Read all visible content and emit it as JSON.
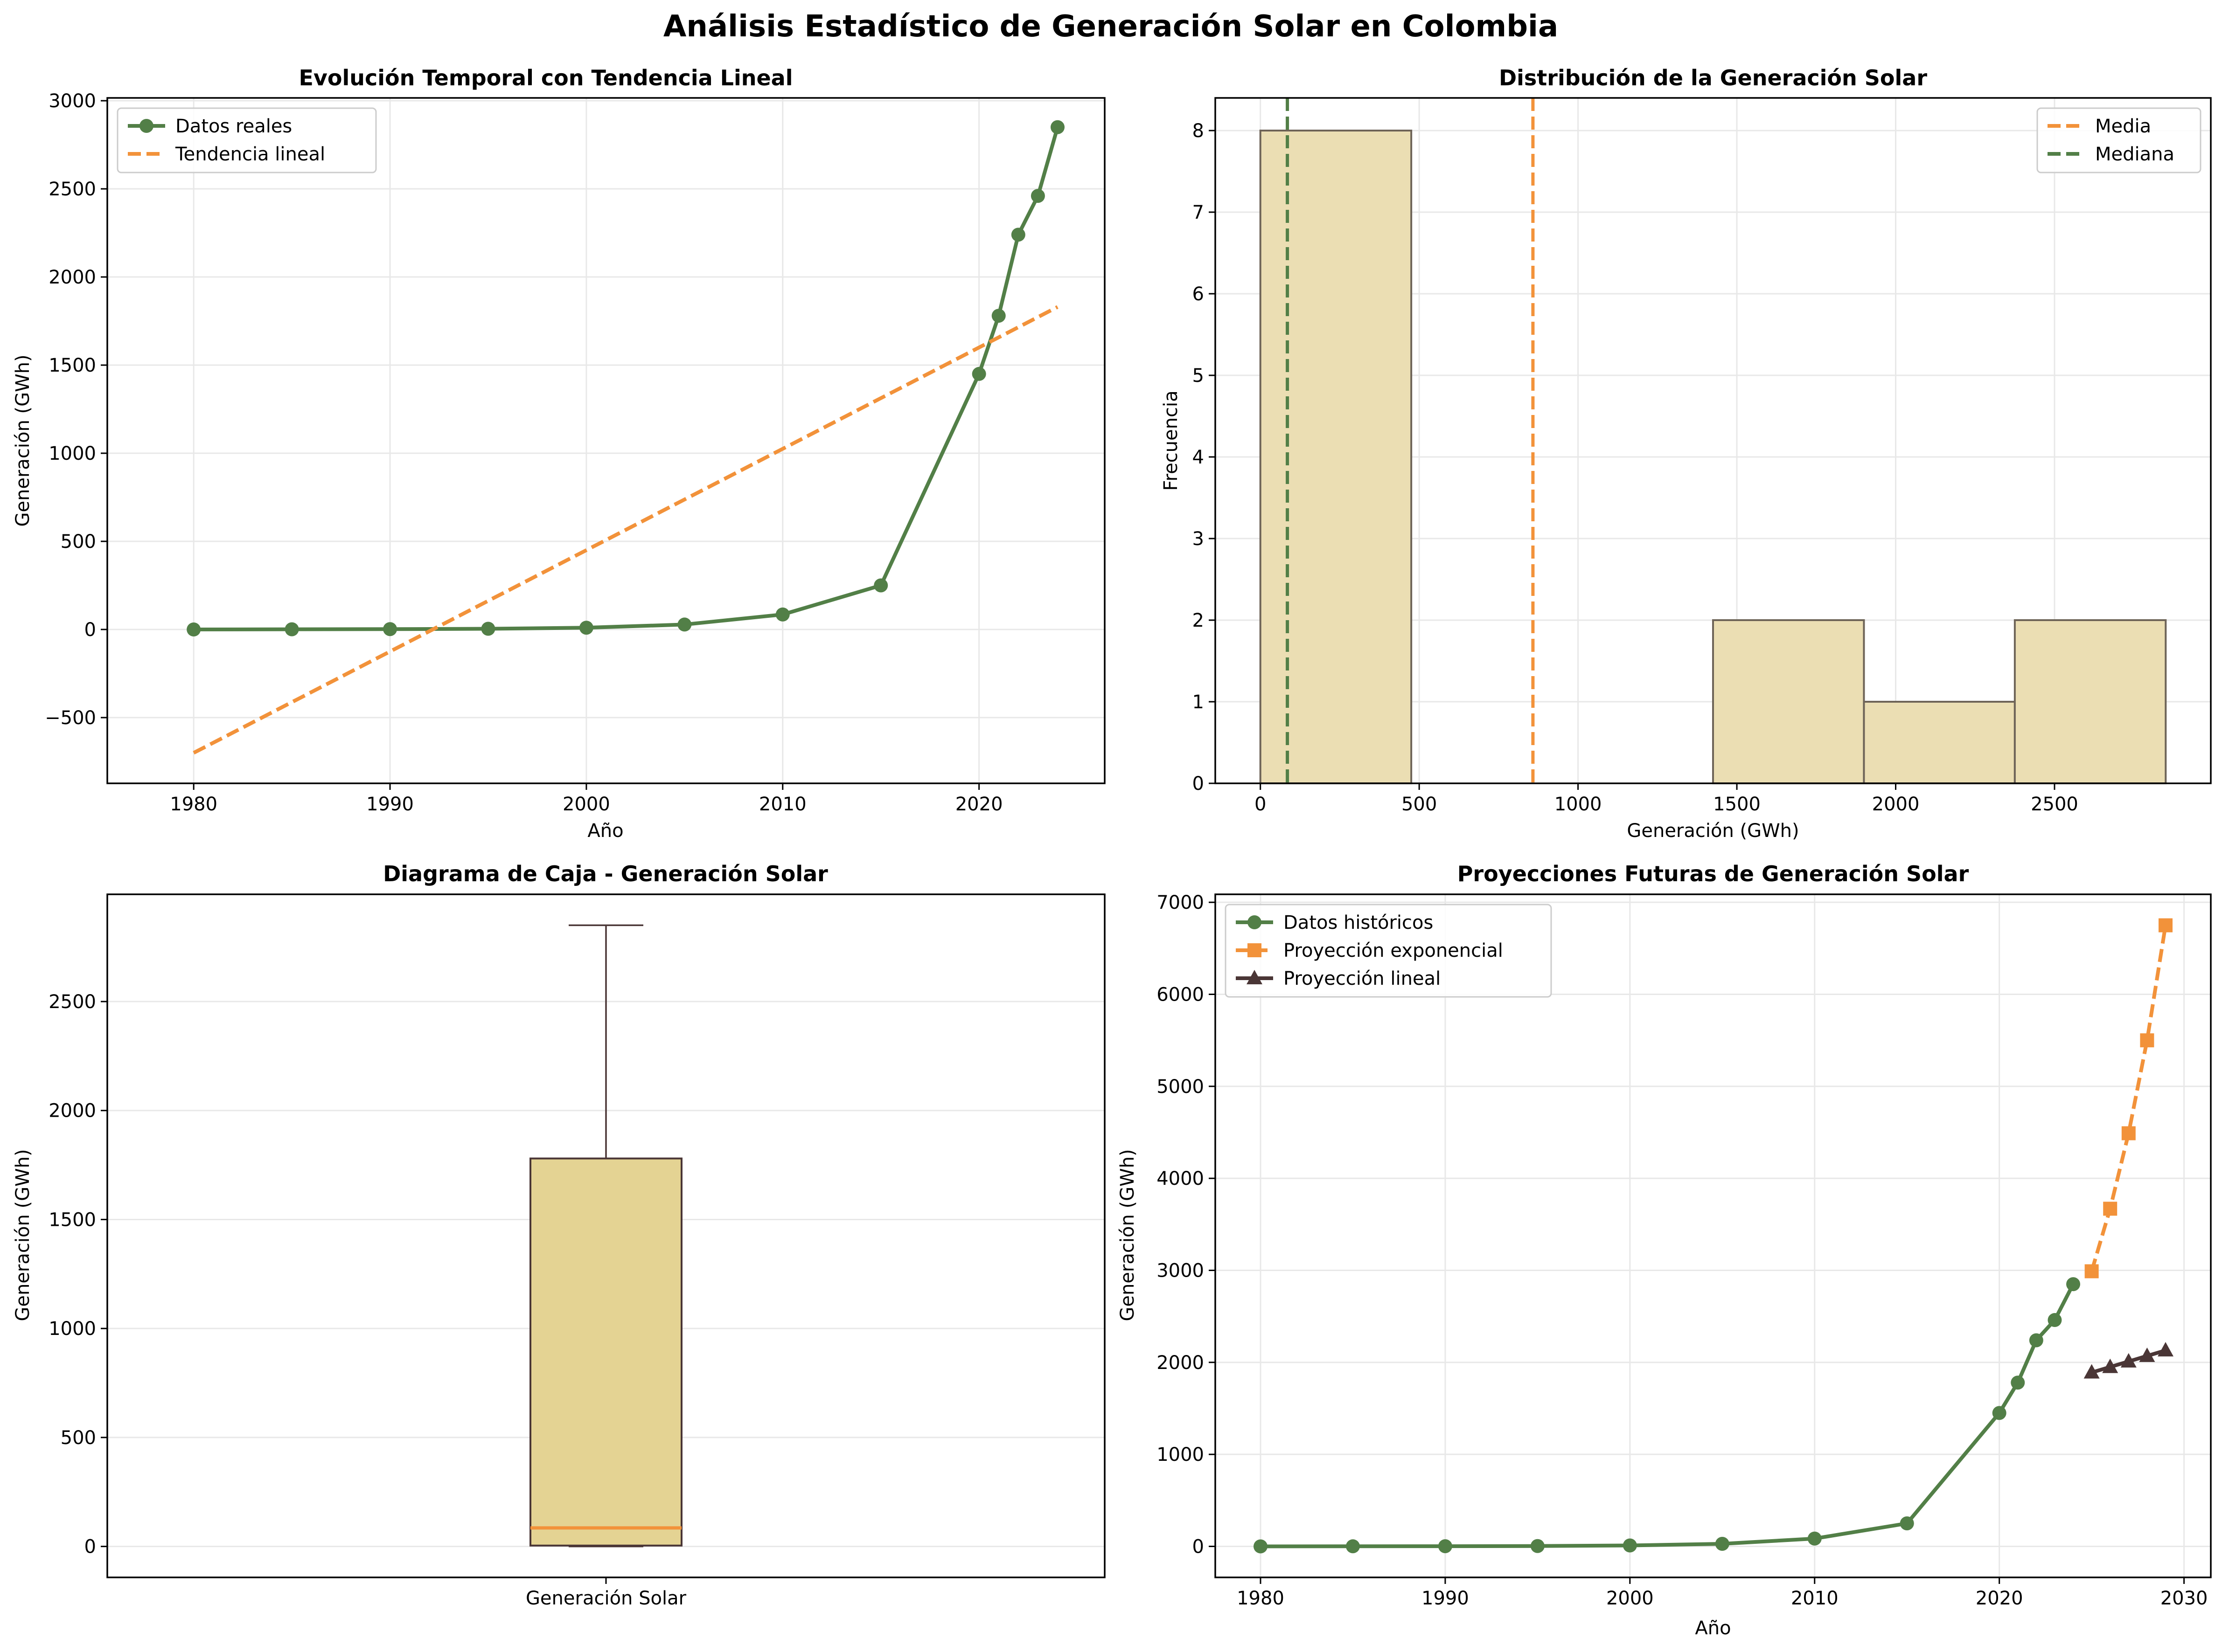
{
  "figure": {
    "title": "Análisis Estadístico de Generación Solar en Colombia"
  },
  "colors": {
    "green": "#527f47",
    "orange": "#f2923a",
    "dark": "#4a3636",
    "hist_fill": "#ebdeb3",
    "box_fill": "#e4d393",
    "grid": "#e8e8e8"
  },
  "chart_data": [
    {
      "id": "trend",
      "type": "line",
      "title": "Evolución Temporal con Tendencia Lineal",
      "xlabel": "Año",
      "ylabel": "Generación (GWh)",
      "xlim": [
        1975.6,
        2026.4
      ],
      "ylim": [
        -873,
        3016
      ],
      "xticks": [
        1980,
        1990,
        2000,
        2010,
        2020
      ],
      "yticks": [
        -500,
        0,
        500,
        1000,
        1500,
        2000,
        2500,
        3000
      ],
      "grid": true,
      "legend": "top-left",
      "series": [
        {
          "name": "Datos reales",
          "style": "line-circle",
          "color": "#527f47",
          "x": [
            1980,
            1985,
            1990,
            1995,
            2000,
            2005,
            2010,
            2015,
            2020,
            2021,
            2022,
            2023,
            2024
          ],
          "y": [
            0,
            1,
            2,
            4,
            10,
            28,
            85,
            250,
            1450,
            1780,
            2240,
            2460,
            2850
          ]
        },
        {
          "name": "Tendencia lineal",
          "style": "dashed",
          "color": "#f2923a",
          "x": [
            1980,
            2024
          ],
          "y": [
            -700,
            1830
          ]
        }
      ]
    },
    {
      "id": "hist",
      "type": "bar",
      "title": "Distribución de la Generación Solar",
      "xlabel": "Generación (GWh)",
      "ylabel": "Frecuencia",
      "xlim": [
        -142,
        2992
      ],
      "ylim": [
        0,
        8.4
      ],
      "xticks": [
        0,
        500,
        1000,
        1500,
        2000,
        2500
      ],
      "yticks": [
        0,
        1,
        2,
        3,
        4,
        5,
        6,
        7,
        8
      ],
      "grid": true,
      "legend": "top-right",
      "bins": [
        {
          "x0": 0,
          "x1": 475,
          "count": 8
        },
        {
          "x0": 475,
          "x1": 950,
          "count": 0
        },
        {
          "x0": 950,
          "x1": 1425,
          "count": 0
        },
        {
          "x0": 1425,
          "x1": 1900,
          "count": 2
        },
        {
          "x0": 1900,
          "x1": 2375,
          "count": 1
        },
        {
          "x0": 2375,
          "x1": 2850,
          "count": 2
        }
      ],
      "vlines": [
        {
          "name": "Media",
          "x": 858,
          "color": "#f2923a"
        },
        {
          "name": "Mediana",
          "x": 85,
          "color": "#527f47"
        }
      ]
    },
    {
      "id": "box",
      "type": "box",
      "title": "Diagrama de Caja - Generación Solar",
      "ylabel": "Generación (GWh)",
      "category": "Generación Solar",
      "ylim": [
        -142,
        2992
      ],
      "yticks": [
        0,
        500,
        1000,
        1500,
        2000,
        2500
      ],
      "grid": true,
      "stats": {
        "min": 0,
        "q1": 4,
        "median": 85,
        "q3": 1780,
        "max": 2850
      }
    },
    {
      "id": "proj",
      "type": "line",
      "title": "Proyecciones Futuras de Generación Solar",
      "xlabel": "Año",
      "ylabel": "Generación (GWh)",
      "xlim": [
        1977.55,
        2031.45
      ],
      "ylim": [
        -337,
        7087
      ],
      "xticks": [
        1980,
        1990,
        2000,
        2010,
        2020,
        2030
      ],
      "yticks": [
        0,
        1000,
        2000,
        3000,
        4000,
        5000,
        6000,
        7000
      ],
      "grid": true,
      "legend": "top-left",
      "series": [
        {
          "name": "Datos históricos",
          "style": "line-circle",
          "color": "#527f47",
          "x": [
            1980,
            1985,
            1990,
            1995,
            2000,
            2005,
            2010,
            2015,
            2020,
            2021,
            2022,
            2023,
            2024
          ],
          "y": [
            0,
            1,
            2,
            4,
            10,
            28,
            85,
            250,
            1450,
            1780,
            2240,
            2460,
            2850
          ]
        },
        {
          "name": "Proyección exponencial",
          "style": "dashed-square",
          "color": "#f2923a",
          "x": [
            2025,
            2026,
            2027,
            2028,
            2029
          ],
          "y": [
            2990,
            3670,
            4490,
            5500,
            6750
          ]
        },
        {
          "name": "Proyección lineal",
          "style": "line-triangle",
          "color": "#4a3636",
          "x": [
            2025,
            2026,
            2027,
            2028,
            2029
          ],
          "y": [
            1890,
            1950,
            2010,
            2070,
            2130
          ]
        }
      ]
    }
  ]
}
